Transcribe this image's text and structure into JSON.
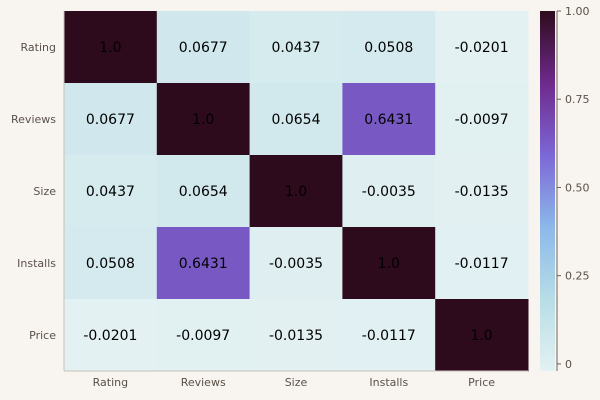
{
  "chart_data": {
    "type": "heatmap",
    "title": "",
    "xlabel": "",
    "ylabel": "",
    "x_categories": [
      "Rating",
      "Reviews",
      "Size",
      "Installs",
      "Price"
    ],
    "y_categories": [
      "Rating",
      "Reviews",
      "Size",
      "Installs",
      "Price"
    ],
    "values": [
      [
        1.0,
        0.0677,
        0.0437,
        0.0508,
        -0.0201
      ],
      [
        0.0677,
        1.0,
        0.0654,
        0.6431,
        -0.0097
      ],
      [
        0.0437,
        0.0654,
        1.0,
        -0.0035,
        -0.0135
      ],
      [
        0.0508,
        0.6431,
        -0.0035,
        1.0,
        -0.0117
      ],
      [
        -0.0201,
        -0.0097,
        -0.0135,
        -0.0117,
        1.0
      ]
    ],
    "cell_labels": [
      [
        "1.0",
        "0.0677",
        "0.0437",
        "0.0508",
        "-0.0201"
      ],
      [
        "0.0677",
        "1.0",
        "0.0654",
        "0.6431",
        "-0.0097"
      ],
      [
        "0.0437",
        "0.0654",
        "1.0",
        "-0.0035",
        "-0.0135"
      ],
      [
        "0.0508",
        "0.6431",
        "-0.0035",
        "1.0",
        "-0.0117"
      ],
      [
        "-0.0201",
        "-0.0097",
        "-0.0135",
        "-0.0117",
        "1.0"
      ]
    ],
    "colorbar": {
      "range": [
        -0.0201,
        1.0
      ],
      "ticks": [
        0,
        0.25,
        0.5,
        0.75,
        1.0
      ],
      "tick_labels": [
        "0",
        "0.25",
        "0.50",
        "0.75",
        "1.00"
      ],
      "colormap": [
        "#e3f1f2",
        "#b7dde6",
        "#8cb8ea",
        "#7c67d6",
        "#6e2a8c",
        "#2e0b1c"
      ]
    },
    "grid": false,
    "legend": "colorbar-right"
  }
}
